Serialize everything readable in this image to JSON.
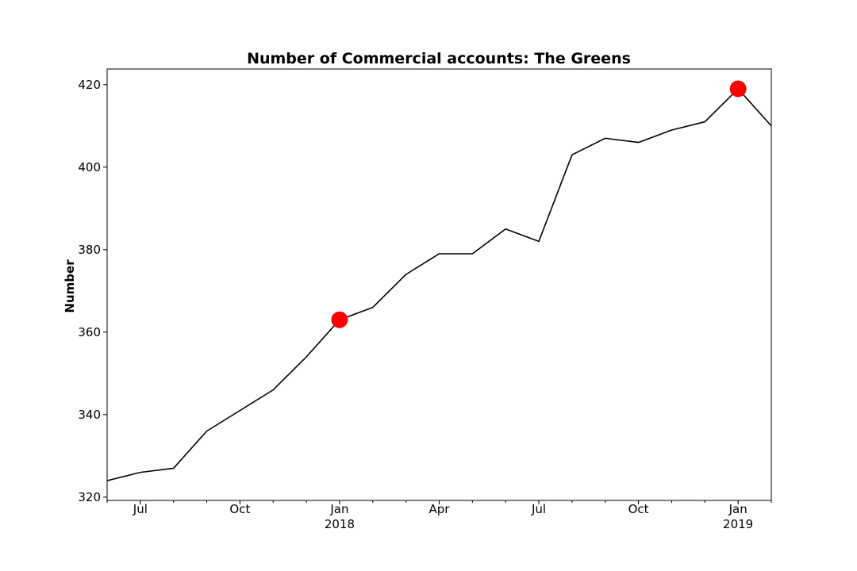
{
  "chart_data": {
    "type": "line",
    "title": "Number of Commercial accounts: The Greens",
    "xlabel": "",
    "ylabel": "Number",
    "x": [
      "2017-06",
      "2017-07",
      "2017-08",
      "2017-09",
      "2017-10",
      "2017-11",
      "2017-12",
      "2018-01",
      "2018-02",
      "2018-03",
      "2018-04",
      "2018-05",
      "2018-06",
      "2018-07",
      "2018-08",
      "2018-09",
      "2018-10",
      "2018-11",
      "2018-12",
      "2019-01",
      "2019-02"
    ],
    "series": [
      {
        "values": [
          324,
          326,
          327,
          336,
          341,
          346,
          354,
          363,
          366,
          374,
          379,
          379,
          385,
          382,
          403,
          407,
          406,
          409,
          411,
          419,
          410
        ],
        "color": "#000000"
      }
    ],
    "highlights": [
      {
        "x": "2018-01",
        "y": 363,
        "color": "#ff0000"
      },
      {
        "x": "2019-01",
        "y": 419,
        "color": "#ff0000"
      }
    ],
    "ylim": [
      319.2,
      423.8
    ],
    "xlim": [
      "2017-06",
      "2019-02"
    ],
    "yticks": [
      320,
      340,
      360,
      380,
      400,
      420
    ],
    "xticks": [
      {
        "x": "2017-07",
        "label": "Jul",
        "sublabel": ""
      },
      {
        "x": "2017-10",
        "label": "Oct",
        "sublabel": ""
      },
      {
        "x": "2018-01",
        "label": "Jan",
        "sublabel": "2018"
      },
      {
        "x": "2018-04",
        "label": "Apr",
        "sublabel": ""
      },
      {
        "x": "2018-07",
        "label": "Jul",
        "sublabel": ""
      },
      {
        "x": "2018-10",
        "label": "Oct",
        "sublabel": ""
      },
      {
        "x": "2019-01",
        "label": "Jan",
        "sublabel": "2019"
      }
    ],
    "grid": false,
    "legend": "none"
  }
}
